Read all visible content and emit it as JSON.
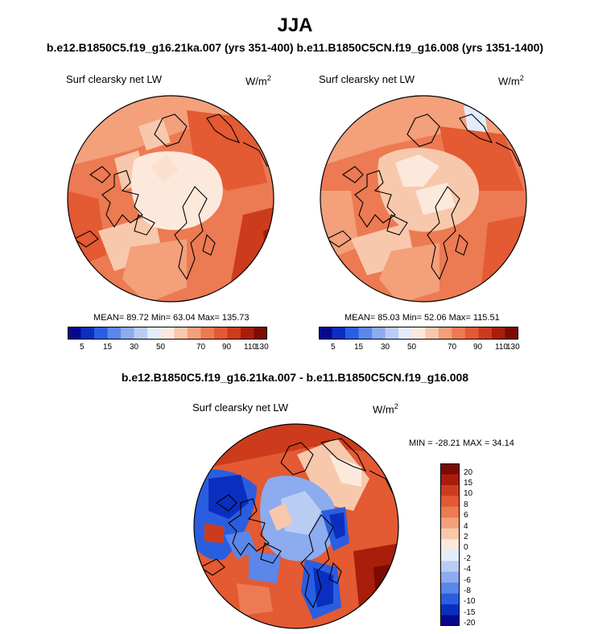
{
  "title": "JJA",
  "subtitle": "b.e12.B1850C5.f19_g16.21ka.007 (yrs 351-400)  b.e11.B1850C5CN.f19_g16.008 (yrs 1351-1400)",
  "colors": {
    "ramp": [
      "#08088c",
      "#0a2fc0",
      "#2a5ee0",
      "#5b86ea",
      "#8dabef",
      "#b9cdf3",
      "#e3ecfb",
      "#fde9dc",
      "#f8c8ad",
      "#f3a07b",
      "#ec7a52",
      "#e35a33",
      "#cc3c1c",
      "#a91d0b",
      "#7c0a05"
    ]
  },
  "panels": [
    {
      "label": "Surf clearsky net LW",
      "unit_base": "W/m",
      "unit_exp": "2",
      "stats": "MEAN=  89.72  Min=  63.04  Max= 135.73",
      "colorbar_ticks": [
        "5",
        "15",
        "30",
        "50",
        "70",
        "90",
        "110",
        "130"
      ]
    },
    {
      "label": "Surf clearsky net LW",
      "unit_base": "W/m",
      "unit_exp": "2",
      "stats": "MEAN=  85.03  Min=  52.06  Max= 115.51",
      "colorbar_ticks": [
        "5",
        "15",
        "30",
        "50",
        "70",
        "90",
        "110",
        "130"
      ]
    }
  ],
  "difference": {
    "title": "b.e12.B1850C5.f19_g16.21ka.007 - b.e11.B1850C5CN.f19_g16.008",
    "label": "Surf clearsky net LW",
    "unit_base": "W/m",
    "unit_exp": "2",
    "stats": "MIN = -28.21 MAX =  34.14",
    "colorbar_ticks": [
      "20",
      "15",
      "10",
      "8",
      "6",
      "4",
      "2",
      "0",
      "-2",
      "-4",
      "-6",
      "-8",
      "-10",
      "-15",
      "-20"
    ]
  }
}
